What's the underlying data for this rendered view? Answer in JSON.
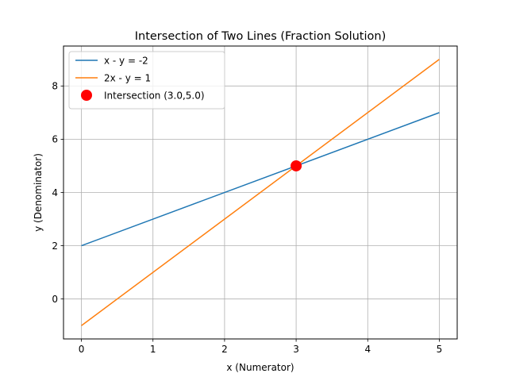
{
  "chart_data": {
    "type": "line",
    "title": "Intersection of Two Lines (Fraction Solution)",
    "xlabel": "x (Numerator)",
    "ylabel": "y (Denominator)",
    "xlim": [
      -0.25,
      5.25
    ],
    "ylim": [
      -1.5,
      9.5
    ],
    "xticks": [
      0,
      1,
      2,
      3,
      4,
      5
    ],
    "yticks": [
      0,
      2,
      4,
      6,
      8
    ],
    "grid": true,
    "legend": "top-left",
    "series": [
      {
        "name": "x - y = -2",
        "color": "#1f77b4",
        "x": [
          0,
          5
        ],
        "y": [
          2,
          7
        ]
      },
      {
        "name": "2x - y = 1",
        "color": "#ff7f0e",
        "x": [
          0,
          5
        ],
        "y": [
          -1,
          9
        ]
      }
    ],
    "points": [
      {
        "name": "Intersection (3.0,5.0)",
        "color": "#ff0000",
        "x": 3.0,
        "y": 5.0
      }
    ]
  }
}
